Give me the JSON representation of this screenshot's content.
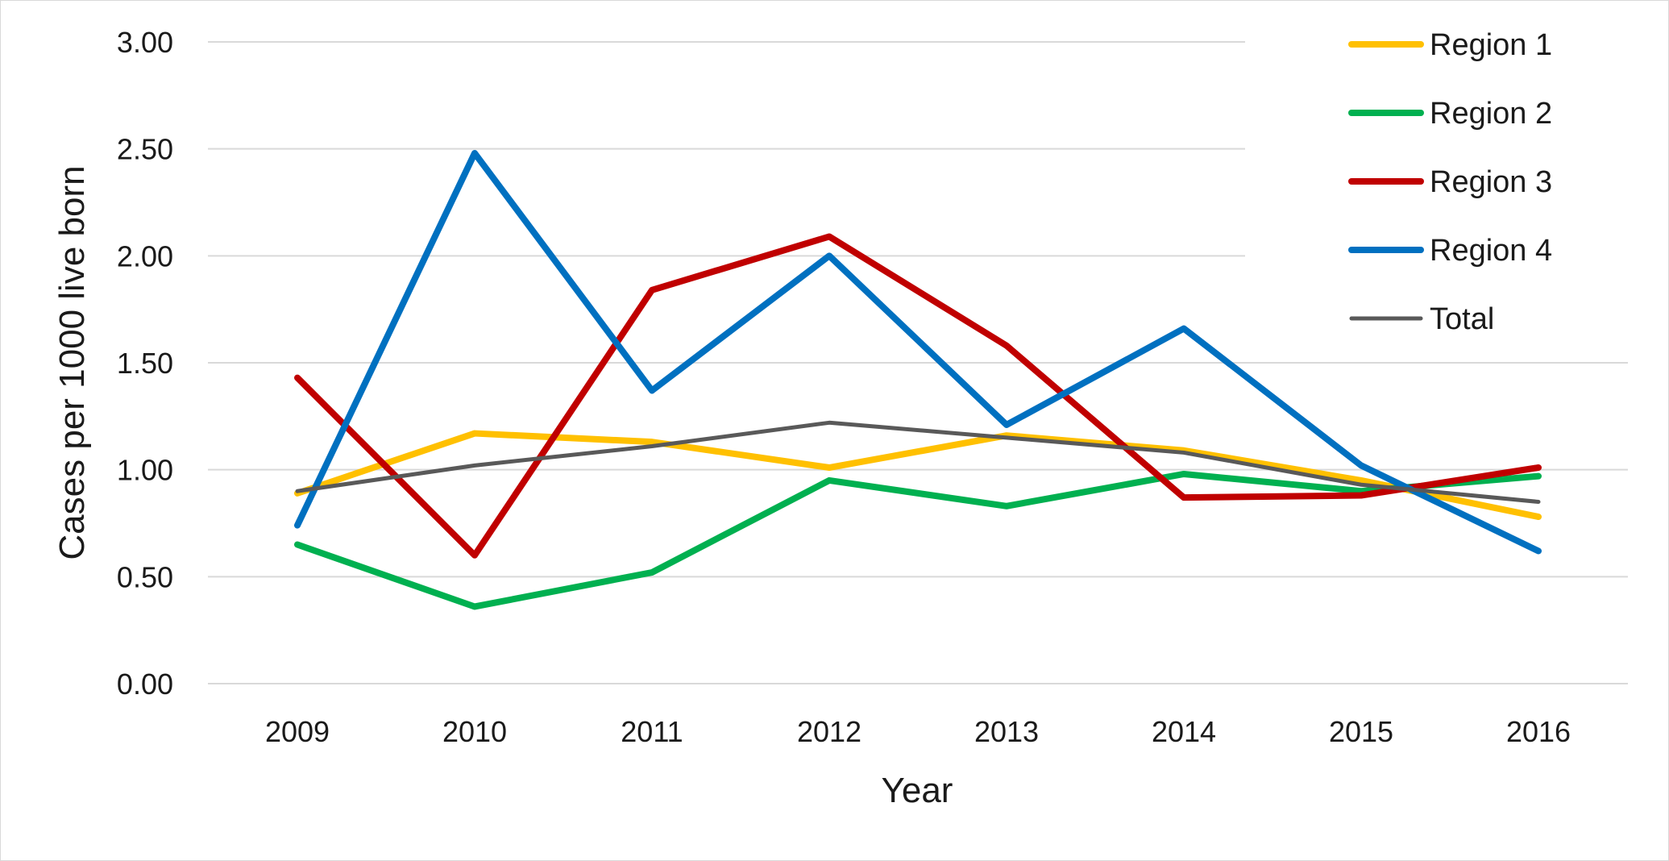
{
  "chart_data": {
    "type": "line",
    "title": "",
    "xlabel": "Year",
    "ylabel": "Cases per 1000 live born",
    "categories": [
      "2009",
      "2010",
      "2011",
      "2012",
      "2013",
      "2014",
      "2015",
      "2016"
    ],
    "ylim": [
      0,
      3
    ],
    "yticks": [
      "0.00",
      "0.50",
      "1.00",
      "1.50",
      "2.00",
      "2.50",
      "3.00"
    ],
    "grid": true,
    "legend_position": "top-right",
    "series": [
      {
        "name": "Region 1",
        "color": "#FFC000",
        "values": [
          0.89,
          1.17,
          1.13,
          1.01,
          1.16,
          1.09,
          0.95,
          0.78
        ]
      },
      {
        "name": "Region 2",
        "color": "#00B050",
        "values": [
          0.65,
          0.36,
          0.52,
          0.95,
          0.83,
          0.98,
          0.9,
          0.97
        ]
      },
      {
        "name": "Region 3",
        "color": "#C00000",
        "values": [
          1.43,
          0.6,
          1.84,
          2.09,
          1.58,
          0.87,
          0.88,
          1.01
        ]
      },
      {
        "name": "Region 4",
        "color": "#0070C0",
        "values": [
          0.74,
          2.48,
          1.37,
          2.0,
          1.21,
          1.66,
          1.02,
          0.62
        ]
      },
      {
        "name": "Total",
        "color": "#595959",
        "values": [
          0.9,
          1.02,
          1.11,
          1.22,
          1.15,
          1.08,
          0.93,
          0.85
        ]
      }
    ]
  }
}
